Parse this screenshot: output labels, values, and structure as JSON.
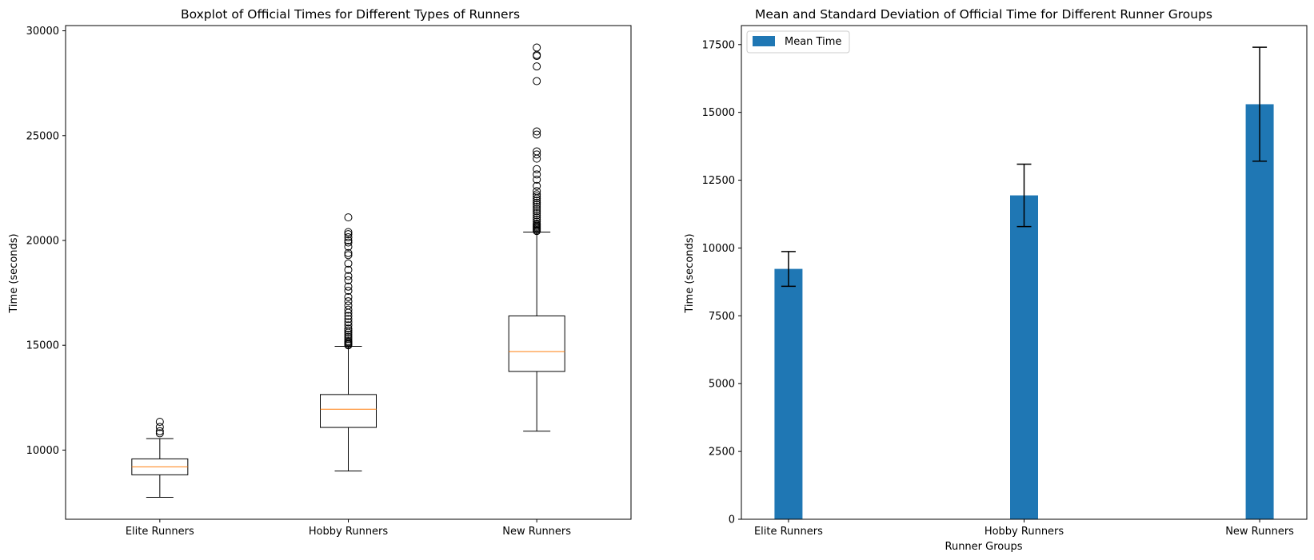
{
  "chart_data": [
    {
      "type": "boxplot",
      "title": "Boxplot of Official Times for Different Types of Runners",
      "xlabel": "",
      "ylabel": "Time (seconds)",
      "ylim": [
        6700,
        30250
      ],
      "yticks": [
        10000,
        15000,
        20000,
        25000,
        30000
      ],
      "categories": [
        "Elite Runners",
        "Hobby Runners",
        "New Runners"
      ],
      "boxes": [
        {
          "name": "Elite Runners",
          "whisker_low": 7750,
          "q1": 8820,
          "median": 9200,
          "q3": 9580,
          "whisker_high": 10550,
          "outliers": [
            10800,
            10900,
            11100,
            11350
          ]
        },
        {
          "name": "Hobby Runners",
          "whisker_low": 9000,
          "q1": 11080,
          "median": 11950,
          "q3": 12650,
          "whisker_high": 14950,
          "outliers": [
            15000,
            15050,
            15100,
            15150,
            15200,
            15300,
            15400,
            15500,
            15600,
            15700,
            15800,
            15950,
            16100,
            16250,
            16400,
            16550,
            16700,
            16900,
            17100,
            17300,
            17600,
            17800,
            18100,
            18300,
            18600,
            18900,
            19300,
            19400,
            19700,
            19900,
            20000,
            20150,
            20300,
            20400,
            21100
          ]
        },
        {
          "name": "New Runners",
          "whisker_low": 10900,
          "q1": 13750,
          "median": 14700,
          "q3": 16400,
          "whisker_high": 20400,
          "outliers": [
            20450,
            20500,
            20550,
            20600,
            20650,
            20700,
            20750,
            20800,
            20900,
            21000,
            21100,
            21200,
            21300,
            21400,
            21500,
            21600,
            21700,
            21800,
            21900,
            22000,
            22100,
            22200,
            22350,
            22600,
            22900,
            23150,
            23400,
            23900,
            24100,
            24250,
            25050,
            25200,
            27600,
            28300,
            28800,
            28850,
            29200
          ]
        }
      ]
    },
    {
      "type": "bar",
      "title": "Mean and Standard Deviation of Official Time for Different Runner Groups",
      "xlabel": "Runner Groups",
      "ylabel": "Time (seconds)",
      "ylim": [
        0,
        18200
      ],
      "yticks": [
        0,
        2500,
        5000,
        7500,
        10000,
        12500,
        15000,
        17500
      ],
      "categories": [
        "Elite Runners",
        "Hobby Runners",
        "New Runners"
      ],
      "series": [
        {
          "name": "Mean Time",
          "values": [
            9230,
            11940,
            15300
          ],
          "error": [
            640,
            1150,
            2100
          ]
        }
      ],
      "legend_position": "top-left",
      "color": "#1f77b4"
    }
  ]
}
